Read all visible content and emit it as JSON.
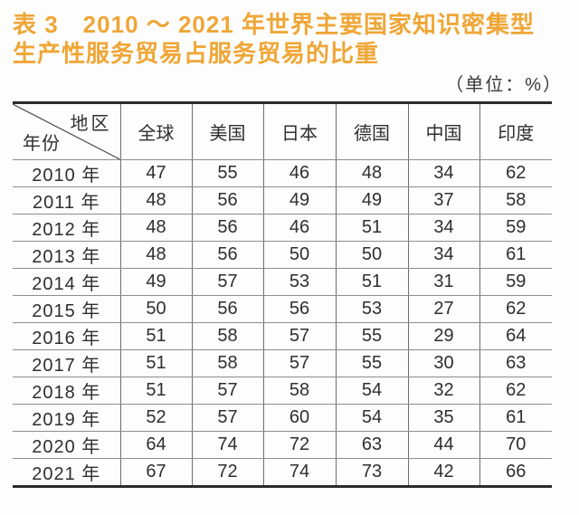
{
  "title": {
    "lines": [
      "表 3　2010 ～ 2021 年世界主要国家知识密集型",
      "生产性服务贸易占服务贸易的比重"
    ],
    "color": "#efa636"
  },
  "unit_label": "（单位：%）",
  "table": {
    "corner": {
      "top_right": "地区",
      "bottom_left": "年份"
    },
    "columns": [
      "全球",
      "美国",
      "日本",
      "德国",
      "中国",
      "印度"
    ],
    "rows": [
      {
        "year": "2010 年",
        "values": [
          47,
          55,
          46,
          48,
          34,
          62
        ]
      },
      {
        "year": "2011 年",
        "values": [
          48,
          56,
          49,
          49,
          37,
          58
        ]
      },
      {
        "year": "2012 年",
        "values": [
          48,
          56,
          46,
          51,
          34,
          59
        ]
      },
      {
        "year": "2013 年",
        "values": [
          48,
          56,
          50,
          50,
          34,
          61
        ]
      },
      {
        "year": "2014 年",
        "values": [
          49,
          57,
          53,
          51,
          31,
          59
        ]
      },
      {
        "year": "2015 年",
        "values": [
          50,
          56,
          56,
          53,
          27,
          62
        ]
      },
      {
        "year": "2016 年",
        "values": [
          51,
          58,
          57,
          55,
          29,
          64
        ]
      },
      {
        "year": "2017 年",
        "values": [
          51,
          58,
          57,
          55,
          30,
          63
        ]
      },
      {
        "year": "2018 年",
        "values": [
          51,
          57,
          58,
          54,
          32,
          62
        ]
      },
      {
        "year": "2019 年",
        "values": [
          52,
          57,
          60,
          54,
          35,
          61
        ]
      },
      {
        "year": "2020 年",
        "values": [
          64,
          74,
          72,
          63,
          44,
          70
        ]
      },
      {
        "year": "2021 年",
        "values": [
          67,
          72,
          74,
          73,
          42,
          66
        ]
      }
    ]
  },
  "chart_data": {
    "type": "table",
    "title": "表 3 2010 ～ 2021 年世界主要国家知识密集型生产性服务贸易占服务贸易的比重",
    "unit": "%",
    "row_axis_label": "年份",
    "column_axis_label": "地区",
    "categories": [
      "2010 年",
      "2011 年",
      "2012 年",
      "2013 年",
      "2014 年",
      "2015 年",
      "2016 年",
      "2017 年",
      "2018 年",
      "2019 年",
      "2020 年",
      "2021 年"
    ],
    "series": [
      {
        "name": "全球",
        "values": [
          47,
          48,
          48,
          48,
          49,
          50,
          51,
          51,
          51,
          52,
          64,
          67
        ]
      },
      {
        "name": "美国",
        "values": [
          55,
          56,
          56,
          56,
          57,
          56,
          58,
          58,
          57,
          57,
          74,
          72
        ]
      },
      {
        "name": "日本",
        "values": [
          46,
          49,
          46,
          50,
          53,
          56,
          57,
          57,
          58,
          60,
          72,
          74
        ]
      },
      {
        "name": "德国",
        "values": [
          48,
          49,
          51,
          50,
          51,
          53,
          55,
          55,
          54,
          54,
          63,
          73
        ]
      },
      {
        "name": "中国",
        "values": [
          34,
          37,
          34,
          34,
          31,
          27,
          29,
          30,
          32,
          35,
          44,
          42
        ]
      },
      {
        "name": "印度",
        "values": [
          62,
          58,
          59,
          61,
          59,
          62,
          64,
          63,
          62,
          61,
          70,
          66
        ]
      }
    ]
  }
}
